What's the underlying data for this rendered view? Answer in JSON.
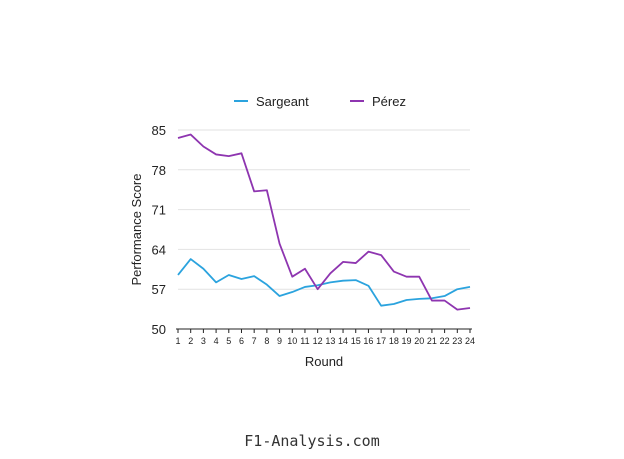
{
  "chart_data": {
    "type": "line",
    "title": "",
    "xlabel": "Round",
    "ylabel": "Performance Score",
    "x": [
      1,
      2,
      3,
      4,
      5,
      6,
      7,
      8,
      9,
      10,
      11,
      12,
      13,
      14,
      15,
      16,
      17,
      18,
      19,
      20,
      21,
      22,
      23,
      24
    ],
    "ylim": [
      50,
      85
    ],
    "yticks": [
      50,
      57,
      64,
      71,
      78,
      85
    ],
    "grid": true,
    "legend": "top",
    "series": [
      {
        "name": "Sargeant",
        "color": "#2ba3de",
        "values": [
          59.5,
          62.3,
          60.6,
          58.2,
          59.5,
          58.8,
          59.3,
          57.8,
          55.8,
          56.5,
          57.4,
          57.7,
          58.2,
          58.5,
          58.6,
          57.6,
          54.1,
          54.4,
          55.1,
          55.3,
          55.4,
          55.8,
          57.0,
          57.4
        ]
      },
      {
        "name": "Pérez",
        "color": "#8e35b0",
        "values": [
          83.6,
          84.2,
          82.1,
          80.7,
          80.4,
          80.9,
          74.2,
          74.4,
          65.0,
          59.2,
          60.6,
          57.0,
          59.8,
          61.8,
          61.6,
          63.6,
          63.0,
          60.1,
          59.2,
          59.2,
          55.0,
          55.0,
          53.4,
          53.7
        ]
      }
    ]
  },
  "footer": "F1-Analysis.com"
}
